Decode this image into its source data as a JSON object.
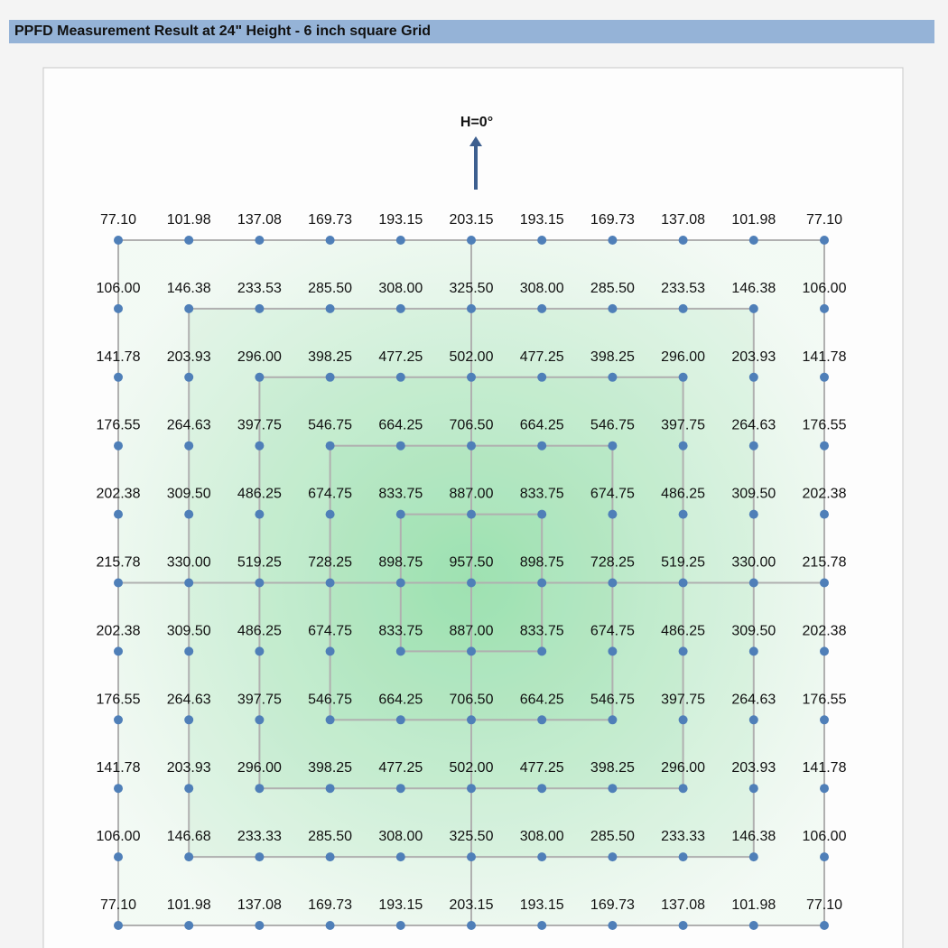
{
  "header": {
    "title": "PPFD Measurement Result at 24\" Height - 6 inch square Grid"
  },
  "direction_label": "H=0°",
  "grid": {
    "rows": [
      [
        "77.10",
        "101.98",
        "137.08",
        "169.73",
        "193.15",
        "203.15",
        "193.15",
        "169.73",
        "137.08",
        "101.98",
        "77.10"
      ],
      [
        "106.00",
        "146.38",
        "233.53",
        "285.50",
        "308.00",
        "325.50",
        "308.00",
        "285.50",
        "233.53",
        "146.38",
        "106.00"
      ],
      [
        "141.78",
        "203.93",
        "296.00",
        "398.25",
        "477.25",
        "502.00",
        "477.25",
        "398.25",
        "296.00",
        "203.93",
        "141.78"
      ],
      [
        "176.55",
        "264.63",
        "397.75",
        "546.75",
        "664.25",
        "706.50",
        "664.25",
        "546.75",
        "397.75",
        "264.63",
        "176.55"
      ],
      [
        "202.38",
        "309.50",
        "486.25",
        "674.75",
        "833.75",
        "887.00",
        "833.75",
        "674.75",
        "486.25",
        "309.50",
        "202.38"
      ],
      [
        "215.78",
        "330.00",
        "519.25",
        "728.25",
        "898.75",
        "957.50",
        "898.75",
        "728.25",
        "519.25",
        "330.00",
        "215.78"
      ],
      [
        "202.38",
        "309.50",
        "486.25",
        "674.75",
        "833.75",
        "887.00",
        "833.75",
        "674.75",
        "486.25",
        "309.50",
        "202.38"
      ],
      [
        "176.55",
        "264.63",
        "397.75",
        "546.75",
        "664.25",
        "706.50",
        "664.25",
        "546.75",
        "397.75",
        "264.63",
        "176.55"
      ],
      [
        "141.78",
        "203.93",
        "296.00",
        "398.25",
        "477.25",
        "502.00",
        "477.25",
        "398.25",
        "296.00",
        "203.93",
        "141.78"
      ],
      [
        "106.00",
        "146.68",
        "233.33",
        "285.50",
        "308.00",
        "325.50",
        "308.00",
        "285.50",
        "233.33",
        "146.38",
        "106.00"
      ],
      [
        "77.10",
        "101.98",
        "137.08",
        "169.73",
        "193.15",
        "203.15",
        "193.15",
        "169.73",
        "137.08",
        "101.98",
        "77.10"
      ]
    ]
  }
}
